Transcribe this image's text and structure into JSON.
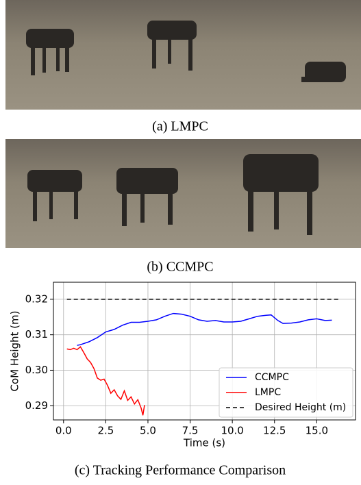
{
  "figure": {
    "captions": [
      "(a) LMPC",
      "(b) CCMPC",
      "(c) Tracking Performance Comparison"
    ]
  },
  "chart_data": {
    "type": "line",
    "xlabel": "Time (s)",
    "ylabel": "CoM Height (m)",
    "xlim": [
      -0.6,
      17.3
    ],
    "ylim": [
      0.286,
      0.3248
    ],
    "xticks": [
      {
        "value": 0,
        "label": "0.0"
      },
      2.5,
      {
        "value": 5,
        "label": "5.0"
      },
      7.5,
      {
        "value": 10,
        "label": "10.0"
      },
      12.5,
      {
        "value": 15,
        "label": "15.0"
      }
    ],
    "yticks": [
      0.29,
      {
        "value": 0.3,
        "label": "0.30"
      },
      0.31,
      0.32
    ],
    "grid": true,
    "legend": "lower right",
    "series": [
      {
        "name": "CCMPC",
        "color": "#0000ff",
        "linestyle": "solid",
        "x": [
          0.8,
          1.0,
          1.5,
          2.0,
          2.5,
          3.0,
          3.5,
          4.0,
          4.5,
          5.0,
          5.5,
          6.0,
          6.5,
          7.0,
          7.5,
          8.0,
          8.5,
          9.0,
          9.5,
          10.0,
          10.5,
          11.0,
          11.5,
          12.0,
          12.3,
          12.7,
          13.0,
          13.5,
          14.0,
          14.5,
          15.0,
          15.5,
          15.9
        ],
        "values": [
          0.307,
          0.3072,
          0.308,
          0.3092,
          0.3108,
          0.3115,
          0.3127,
          0.3135,
          0.3135,
          0.3138,
          0.3142,
          0.3152,
          0.316,
          0.3158,
          0.3152,
          0.3142,
          0.3138,
          0.314,
          0.3136,
          0.3136,
          0.3138,
          0.3145,
          0.3152,
          0.3155,
          0.3156,
          0.314,
          0.3132,
          0.3133,
          0.3136,
          0.3142,
          0.3145,
          0.314,
          0.3141
        ]
      },
      {
        "name": "LMPC",
        "color": "#ff0000",
        "linestyle": "solid",
        "x": [
          0.2,
          0.4,
          0.6,
          0.8,
          1.0,
          1.2,
          1.4,
          1.6,
          1.8,
          2.0,
          2.2,
          2.4,
          2.6,
          2.8,
          3.0,
          3.2,
          3.4,
          3.6,
          3.8,
          4.0,
          4.2,
          4.4,
          4.6,
          4.7,
          4.8
        ],
        "values": [
          0.306,
          0.3058,
          0.3062,
          0.3058,
          0.3066,
          0.305,
          0.3032,
          0.3022,
          0.3005,
          0.2978,
          0.2972,
          0.2975,
          0.2958,
          0.2935,
          0.2945,
          0.2928,
          0.2918,
          0.2942,
          0.2915,
          0.2925,
          0.2905,
          0.2917,
          0.2893,
          0.2873,
          0.2902
        ]
      },
      {
        "name": "Desired Height (m)",
        "color": "#000000",
        "linestyle": "dashed",
        "x": [
          0.2,
          16.4
        ],
        "values": [
          0.32,
          0.32
        ]
      }
    ]
  }
}
